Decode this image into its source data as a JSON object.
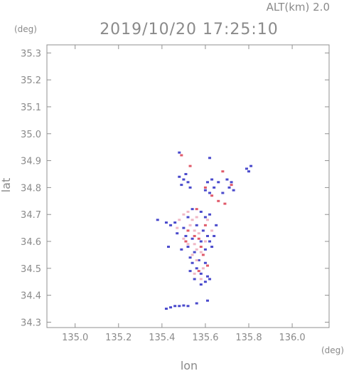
{
  "chart_data": {
    "type": "scatter",
    "header_right": "ALT(km) 2.0",
    "title": "2019/10/20 17:25:10",
    "y_unit": "(deg)",
    "x_unit": "(deg)",
    "xlabel": "lon",
    "ylabel": "lat",
    "xlim": [
      134.87,
      136.17
    ],
    "ylim": [
      34.28,
      35.33
    ],
    "x_ticks": [
      135.0,
      135.2,
      135.4,
      135.6,
      135.8,
      136.0
    ],
    "x_tick_labels": [
      "135.0",
      "135.2",
      "135.4",
      "135.6",
      "135.8",
      "136.0"
    ],
    "y_ticks": [
      34.3,
      34.4,
      34.5,
      34.6,
      34.7,
      34.8,
      34.9,
      35.0,
      35.1,
      35.2,
      35.3
    ],
    "y_tick_labels": [
      "34.3",
      "34.4",
      "34.5",
      "34.6",
      "34.7",
      "34.8",
      "34.9",
      "35.0",
      "35.1",
      "35.2",
      "35.3"
    ],
    "grid": false,
    "colors": {
      "axis": "#909090",
      "blue_points": "#4a4acc",
      "red_points": "#e05a6a",
      "pink_points": "#f0b8c6"
    },
    "series": [
      {
        "color": "#4a4acc",
        "points": [
          [
            135.48,
            34.84
          ],
          [
            135.5,
            34.83
          ],
          [
            135.52,
            34.82
          ],
          [
            135.49,
            34.81
          ],
          [
            135.53,
            34.8
          ],
          [
            135.51,
            34.85
          ],
          [
            135.6,
            34.79
          ],
          [
            135.62,
            34.78
          ],
          [
            135.61,
            34.82
          ],
          [
            135.64,
            34.8
          ],
          [
            135.63,
            34.83
          ],
          [
            135.66,
            34.82
          ],
          [
            135.7,
            34.83
          ],
          [
            135.72,
            34.82
          ],
          [
            135.71,
            34.8
          ],
          [
            135.68,
            34.78
          ],
          [
            135.73,
            34.79
          ],
          [
            135.79,
            34.87
          ],
          [
            135.81,
            34.88
          ],
          [
            135.8,
            34.86
          ],
          [
            135.62,
            34.91
          ],
          [
            135.48,
            34.93
          ],
          [
            135.54,
            34.72
          ],
          [
            135.58,
            34.71
          ],
          [
            135.6,
            34.69
          ],
          [
            135.62,
            34.7
          ],
          [
            135.52,
            34.69
          ],
          [
            135.46,
            34.67
          ],
          [
            135.42,
            34.67
          ],
          [
            135.44,
            34.66
          ],
          [
            135.5,
            34.65
          ],
          [
            135.56,
            34.66
          ],
          [
            135.59,
            34.64
          ],
          [
            135.61,
            34.62
          ],
          [
            135.47,
            34.63
          ],
          [
            135.51,
            34.62
          ],
          [
            135.54,
            34.61
          ],
          [
            135.58,
            34.6
          ],
          [
            135.62,
            34.6
          ],
          [
            135.6,
            34.57
          ],
          [
            135.55,
            34.56
          ],
          [
            135.52,
            34.58
          ],
          [
            135.49,
            34.57
          ],
          [
            135.53,
            34.54
          ],
          [
            135.57,
            34.53
          ],
          [
            135.6,
            34.52
          ],
          [
            135.56,
            34.5
          ],
          [
            135.53,
            34.49
          ],
          [
            135.58,
            34.48
          ],
          [
            135.61,
            34.47
          ],
          [
            135.55,
            34.46
          ],
          [
            135.58,
            34.44
          ],
          [
            135.6,
            34.45
          ],
          [
            135.62,
            34.46
          ],
          [
            135.54,
            34.52
          ],
          [
            135.65,
            34.66
          ],
          [
            135.64,
            34.62
          ],
          [
            135.63,
            34.58
          ],
          [
            135.43,
            34.58
          ],
          [
            135.38,
            34.68
          ],
          [
            135.42,
            34.35
          ],
          [
            135.44,
            34.355
          ],
          [
            135.46,
            34.36
          ],
          [
            135.48,
            34.36
          ],
          [
            135.5,
            34.362
          ],
          [
            135.52,
            34.36
          ],
          [
            135.56,
            34.37
          ],
          [
            135.61,
            34.38
          ]
        ]
      },
      {
        "color": "#e05a6a",
        "points": [
          [
            135.49,
            34.92
          ],
          [
            135.68,
            34.86
          ],
          [
            135.66,
            34.75
          ],
          [
            135.69,
            34.74
          ],
          [
            135.63,
            34.77
          ],
          [
            135.72,
            34.81
          ],
          [
            135.6,
            34.8
          ],
          [
            135.56,
            34.72
          ],
          [
            135.57,
            34.61
          ],
          [
            135.58,
            34.58
          ],
          [
            135.55,
            34.62
          ],
          [
            135.59,
            34.55
          ],
          [
            135.61,
            34.51
          ],
          [
            135.57,
            34.49
          ],
          [
            135.6,
            34.66
          ],
          [
            135.52,
            34.64
          ],
          [
            135.51,
            34.6
          ],
          [
            135.53,
            34.88
          ]
        ]
      },
      {
        "color": "#f0b8c6",
        "points": [
          [
            135.5,
            34.7
          ],
          [
            135.52,
            34.71
          ],
          [
            135.54,
            34.68
          ],
          [
            135.56,
            34.69
          ],
          [
            135.53,
            34.66
          ],
          [
            135.55,
            34.64
          ],
          [
            135.57,
            34.63
          ],
          [
            135.5,
            34.61
          ],
          [
            135.52,
            34.59
          ],
          [
            135.55,
            34.59
          ],
          [
            135.56,
            34.57
          ],
          [
            135.54,
            34.55
          ],
          [
            135.58,
            34.56
          ],
          [
            135.56,
            34.53
          ],
          [
            135.59,
            34.5
          ],
          [
            135.55,
            34.48
          ],
          [
            135.58,
            34.46
          ],
          [
            135.61,
            34.68
          ],
          [
            135.63,
            34.64
          ],
          [
            135.6,
            34.6
          ],
          [
            135.48,
            34.68
          ],
          [
            135.47,
            34.65
          ]
        ]
      }
    ]
  }
}
